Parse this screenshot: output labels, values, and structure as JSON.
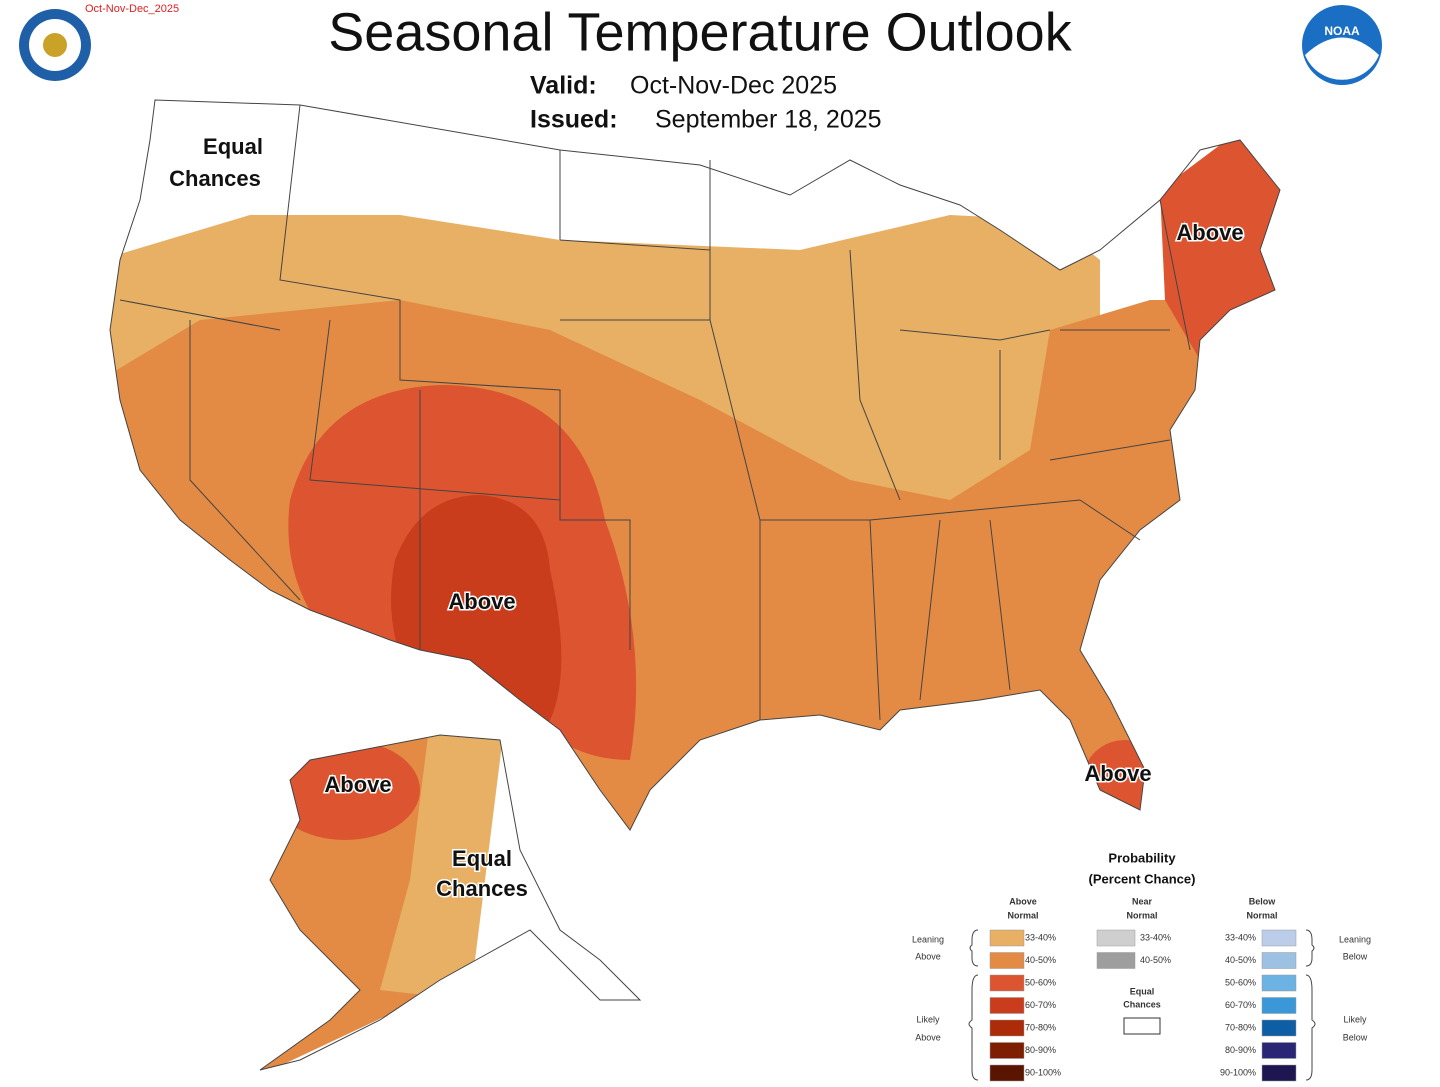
{
  "header": {
    "tag": "Oct-Nov-Dec_2025",
    "title": "Seasonal Temperature Outlook",
    "valid_label": "Valid:",
    "valid": "Oct-Nov-Dec 2025",
    "issued_label": "Issued:",
    "issued": "September 18, 2025"
  },
  "logos": {
    "noaa": "NOAA"
  },
  "map_labels": [
    {
      "lines": [
        "Equal",
        "Chances"
      ]
    },
    {
      "lines": [
        "Above"
      ]
    },
    {
      "lines": [
        "Above"
      ]
    },
    {
      "lines": [
        "Above"
      ]
    },
    {
      "lines": [
        "Above"
      ]
    },
    {
      "lines": [
        "Equal",
        "Chances"
      ]
    }
  ],
  "legend": {
    "title": [
      "Probability",
      "(Percent Chance)"
    ],
    "columns": [
      {
        "heading": [
          "Above",
          "Normal"
        ],
        "bins": [
          {
            "label": "33-40%",
            "color": "#e8b064"
          },
          {
            "label": "40-50%",
            "color": "#e38b45"
          },
          {
            "label": "50-60%",
            "color": "#dd5530"
          },
          {
            "label": "60-70%",
            "color": "#c93d1c"
          },
          {
            "label": "70-80%",
            "color": "#ac2b08"
          },
          {
            "label": "80-90%",
            "color": "#7e1e02"
          },
          {
            "label": "90-100%",
            "color": "#5a1500"
          }
        ]
      },
      {
        "heading": [
          "Near",
          "Normal"
        ],
        "bins": [
          {
            "label": "33-40%",
            "color": "#cfcfcf"
          },
          {
            "label": "40-50%",
            "color": "#9e9e9e"
          }
        ]
      },
      {
        "heading": [
          "Below",
          "Normal"
        ],
        "bins": [
          {
            "label": "33-40%",
            "color": "#bccde9"
          },
          {
            "label": "40-50%",
            "color": "#9cc1e3"
          },
          {
            "label": "50-60%",
            "color": "#6cb3e4"
          },
          {
            "label": "60-70%",
            "color": "#3a98d8"
          },
          {
            "label": "70-80%",
            "color": "#0e5ea6"
          },
          {
            "label": "80-90%",
            "color": "#2a2676"
          },
          {
            "label": "90-100%",
            "color": "#1e1650"
          }
        ]
      }
    ],
    "equal_chances": [
      "Equal",
      "Chances"
    ],
    "groups": {
      "leaning_above": [
        "Leaning",
        "Above"
      ],
      "likely_above": [
        "Likely",
        "Above"
      ],
      "leaning_below": [
        "Leaning",
        "Below"
      ],
      "likely_below": [
        "Likely",
        "Below"
      ]
    }
  }
}
